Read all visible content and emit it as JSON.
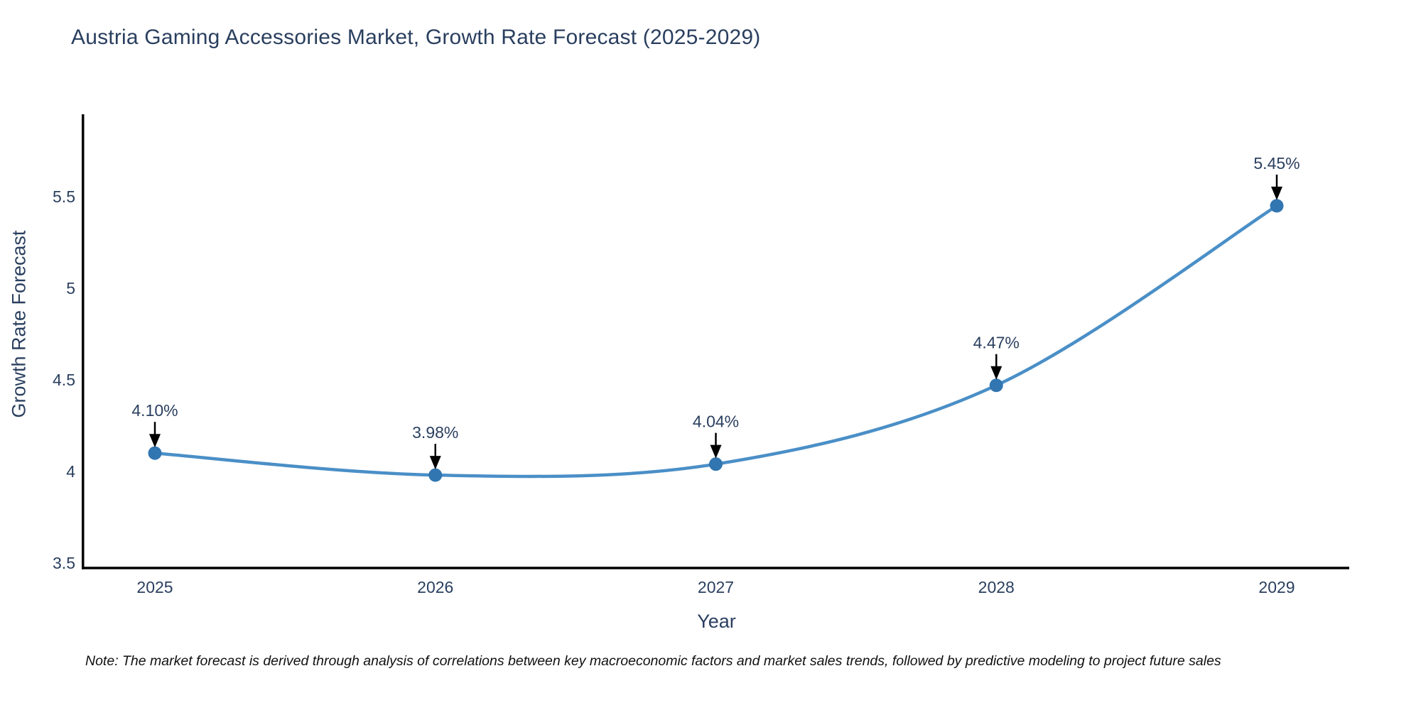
{
  "title": "Austria Gaming Accessories Market, Growth Rate Forecast (2025-2029)",
  "note": "Note: The market forecast is derived through analysis of correlations between key macroeconomic factors and market sales trends, followed by predictive modeling to project future sales",
  "chart_data": {
    "type": "line",
    "title": "Austria Gaming Accessories Market, Growth Rate Forecast (2025-2029)",
    "xlabel": "Year",
    "ylabel": "Growth Rate Forecast",
    "x": [
      2025,
      2026,
      2027,
      2028,
      2029
    ],
    "series": [
      {
        "name": "Growth Rate Forecast",
        "values": [
          4.1,
          3.98,
          4.04,
          4.47,
          5.45
        ]
      }
    ],
    "point_labels": [
      "4.10%",
      "3.98%",
      "4.04%",
      "4.47%",
      "5.45%"
    ],
    "xtick_labels": [
      "2025",
      "2026",
      "2027",
      "2028",
      "2029"
    ],
    "yticks": [
      3.5,
      4,
      4.5,
      5,
      5.5
    ],
    "ytick_labels": [
      "3.5",
      "4",
      "4.5",
      "5",
      "5.5"
    ],
    "ylim": [
      3.47,
      5.95
    ],
    "xlim": [
      2024.74,
      2029.26
    ],
    "grid": false,
    "legend": "none",
    "colors": {
      "line": "#4a8fc7",
      "marker": "#3276b1",
      "axis": "#000000",
      "text": "#2a3f5f",
      "arrow": "#000000"
    }
  }
}
